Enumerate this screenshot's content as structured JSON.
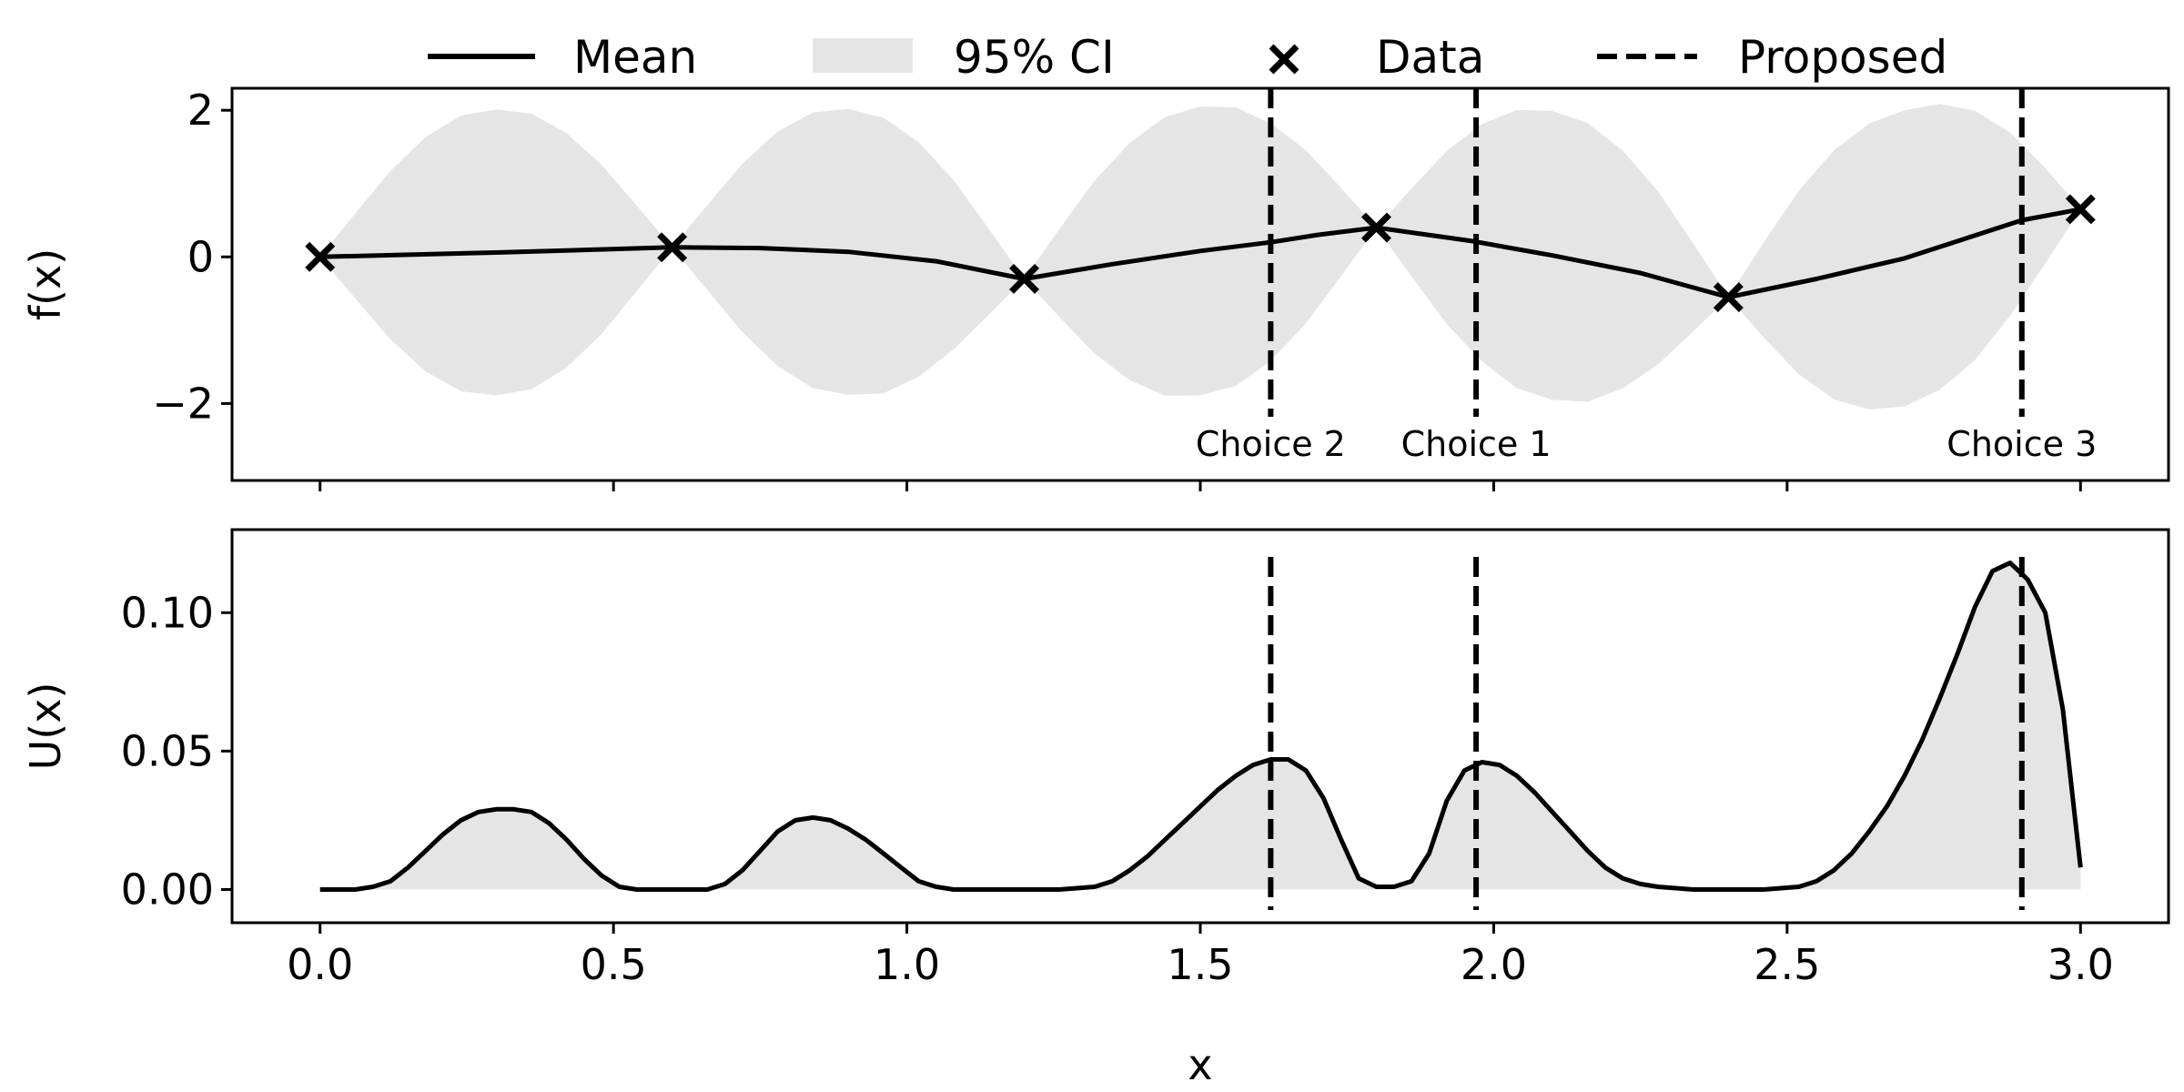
{
  "chart_data": [
    {
      "id": "top",
      "type": "line",
      "ylabel": "f(x)",
      "xlim": [
        -0.15,
        3.15
      ],
      "ylim": [
        -3.05,
        2.3
      ],
      "yticks": [
        2,
        0,
        -2
      ],
      "ytick_labels": [
        "2",
        "0",
        "−2"
      ],
      "xticks": [
        0.0,
        0.5,
        1.0,
        1.5,
        2.0,
        2.5,
        3.0
      ],
      "legend": {
        "placement": "top-center",
        "entries": [
          {
            "label": "Mean",
            "kind": "line"
          },
          {
            "label": "95% CI",
            "kind": "patch"
          },
          {
            "label": "Data",
            "kind": "marker"
          },
          {
            "label": "Proposed",
            "kind": "dashed"
          }
        ]
      },
      "data_points": {
        "x": [
          0.0,
          0.6,
          1.2,
          1.8,
          2.4,
          3.0
        ],
        "y": [
          0.0,
          0.13,
          -0.3,
          0.4,
          -0.55,
          0.65
        ]
      },
      "mean": {
        "x": [
          0.0,
          0.3,
          0.6,
          0.75,
          0.9,
          1.05,
          1.2,
          1.35,
          1.5,
          1.62,
          1.7,
          1.8,
          1.96,
          2.1,
          2.25,
          2.4,
          2.55,
          2.7,
          2.9,
          3.0
        ],
        "y": [
          0.0,
          0.06,
          0.13,
          0.12,
          0.07,
          -0.06,
          -0.3,
          -0.1,
          0.08,
          0.2,
          0.3,
          0.4,
          0.22,
          0.02,
          -0.22,
          -0.55,
          -0.3,
          -0.02,
          0.5,
          0.65
        ]
      },
      "ci_halfwidth": {
        "x": [
          0.0,
          0.06,
          0.12,
          0.18,
          0.24,
          0.3,
          0.36,
          0.42,
          0.48,
          0.54,
          0.6,
          0.66,
          0.72,
          0.78,
          0.84,
          0.9,
          0.96,
          1.02,
          1.08,
          1.14,
          1.2,
          1.26,
          1.32,
          1.38,
          1.44,
          1.5,
          1.56,
          1.62,
          1.68,
          1.74,
          1.8,
          1.86,
          1.92,
          1.98,
          2.04,
          2.1,
          2.16,
          2.22,
          2.28,
          2.34,
          2.4,
          2.46,
          2.52,
          2.58,
          2.64,
          2.7,
          2.76,
          2.82,
          2.88,
          2.94,
          3.0
        ],
        "y": [
          0.0,
          0.58,
          1.15,
          1.6,
          1.88,
          1.95,
          1.88,
          1.6,
          1.15,
          0.58,
          0.0,
          0.58,
          1.15,
          1.6,
          1.88,
          1.95,
          1.88,
          1.6,
          1.15,
          0.58,
          0.0,
          0.6,
          1.18,
          1.62,
          1.9,
          1.97,
          1.9,
          1.62,
          1.18,
          0.6,
          0.0,
          0.6,
          1.18,
          1.62,
          1.9,
          1.97,
          1.9,
          1.62,
          1.18,
          0.6,
          0.0,
          0.65,
          1.25,
          1.7,
          1.95,
          2.02,
          1.95,
          1.7,
          1.25,
          0.65,
          0.0
        ]
      },
      "proposed": [
        {
          "x": 1.62,
          "label": "Choice 2"
        },
        {
          "x": 1.97,
          "label": "Choice 1"
        },
        {
          "x": 2.9,
          "label": "Choice 3"
        }
      ]
    },
    {
      "id": "bottom",
      "type": "area",
      "xlabel": "x",
      "ylabel": "U(x)",
      "xlim": [
        -0.15,
        3.15
      ],
      "ylim": [
        -0.012,
        0.13
      ],
      "yticks": [
        0.0,
        0.05,
        0.1
      ],
      "ytick_labels": [
        "0.00",
        "0.05",
        "0.10"
      ],
      "xticks": [
        0.0,
        0.5,
        1.0,
        1.5,
        2.0,
        2.5,
        3.0
      ],
      "xtick_labels": [
        "0.0",
        "0.5",
        "1.0",
        "1.5",
        "2.0",
        "2.5",
        "3.0"
      ],
      "utility": {
        "x": [
          0.0,
          0.06,
          0.09,
          0.12,
          0.15,
          0.18,
          0.21,
          0.24,
          0.27,
          0.3,
          0.33,
          0.36,
          0.39,
          0.42,
          0.45,
          0.48,
          0.51,
          0.54,
          0.6,
          0.66,
          0.69,
          0.72,
          0.75,
          0.78,
          0.81,
          0.84,
          0.87,
          0.9,
          0.93,
          0.96,
          0.99,
          1.02,
          1.05,
          1.08,
          1.14,
          1.26,
          1.32,
          1.35,
          1.38,
          1.41,
          1.44,
          1.47,
          1.5,
          1.53,
          1.56,
          1.59,
          1.62,
          1.65,
          1.68,
          1.71,
          1.74,
          1.77,
          1.8,
          1.83,
          1.86,
          1.89,
          1.92,
          1.95,
          1.98,
          2.01,
          2.04,
          2.07,
          2.1,
          2.13,
          2.16,
          2.19,
          2.22,
          2.25,
          2.28,
          2.34,
          2.46,
          2.52,
          2.55,
          2.58,
          2.61,
          2.64,
          2.67,
          2.7,
          2.73,
          2.76,
          2.79,
          2.82,
          2.85,
          2.88,
          2.91,
          2.94,
          2.97,
          3.0
        ],
        "y": [
          0.0,
          0.0,
          0.001,
          0.003,
          0.008,
          0.014,
          0.02,
          0.025,
          0.028,
          0.029,
          0.029,
          0.028,
          0.024,
          0.018,
          0.011,
          0.005,
          0.001,
          0.0,
          0.0,
          0.0,
          0.002,
          0.007,
          0.014,
          0.021,
          0.025,
          0.026,
          0.025,
          0.022,
          0.018,
          0.013,
          0.008,
          0.003,
          0.001,
          0.0,
          0.0,
          0.0,
          0.001,
          0.003,
          0.007,
          0.012,
          0.018,
          0.024,
          0.03,
          0.036,
          0.041,
          0.045,
          0.047,
          0.047,
          0.043,
          0.033,
          0.018,
          0.004,
          0.001,
          0.001,
          0.003,
          0.013,
          0.032,
          0.043,
          0.046,
          0.045,
          0.041,
          0.035,
          0.028,
          0.021,
          0.014,
          0.008,
          0.004,
          0.002,
          0.001,
          0.0,
          0.0,
          0.001,
          0.003,
          0.007,
          0.013,
          0.021,
          0.03,
          0.041,
          0.054,
          0.069,
          0.085,
          0.102,
          0.115,
          0.118,
          0.112,
          0.1,
          0.065,
          0.008
        ]
      },
      "proposed": [
        {
          "x": 1.62
        },
        {
          "x": 1.97
        },
        {
          "x": 2.9
        }
      ]
    }
  ]
}
